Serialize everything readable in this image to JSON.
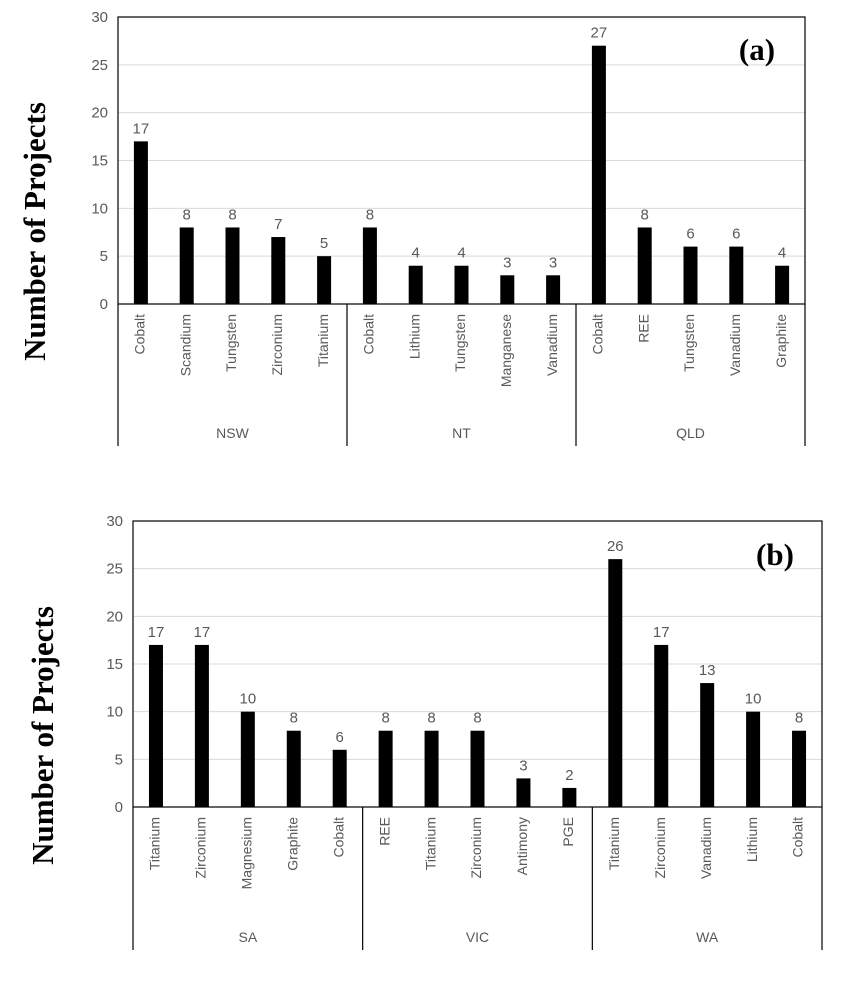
{
  "chart_data": [
    {
      "type": "bar",
      "panel_label": "(a)",
      "ylabel": "Number of Projects",
      "ylim": [
        0,
        30
      ],
      "yticks": [
        "0",
        "5",
        "10",
        "15",
        "20",
        "25",
        "30"
      ],
      "grid": true,
      "groups": [
        {
          "name": "NSW",
          "categories": [
            "Cobalt",
            "Scandium",
            "Tungsten",
            "Zirconium",
            "Titanium"
          ],
          "values": [
            17,
            8,
            8,
            7,
            5
          ]
        },
        {
          "name": "NT",
          "categories": [
            "Cobalt",
            "Lithium",
            "Tungsten",
            "Manganese",
            "Vanadium"
          ],
          "values": [
            8,
            4,
            4,
            3,
            3
          ]
        },
        {
          "name": "QLD",
          "categories": [
            "Cobalt",
            "REE",
            "Tungsten",
            "Vanadium",
            "Graphite"
          ],
          "values": [
            27,
            8,
            6,
            6,
            4
          ]
        }
      ]
    },
    {
      "type": "bar",
      "panel_label": "(b)",
      "ylabel": "Number of Projects",
      "ylim": [
        0,
        30
      ],
      "yticks": [
        "0",
        "5",
        "10",
        "15",
        "20",
        "25",
        "30"
      ],
      "grid": true,
      "groups": [
        {
          "name": "SA",
          "categories": [
            "Titanium",
            "Zirconium",
            "Magnesium",
            "Graphite",
            "Cobalt"
          ],
          "values": [
            17,
            17,
            10,
            8,
            6
          ]
        },
        {
          "name": "VIC",
          "categories": [
            "REE",
            "Titanium",
            "Zirconium",
            "Antimony",
            "PGE"
          ],
          "values": [
            8,
            8,
            8,
            3,
            2
          ]
        },
        {
          "name": "WA",
          "categories": [
            "Titanium",
            "Zirconium",
            "Vanadium",
            "Lithium",
            "Cobalt"
          ],
          "values": [
            26,
            17,
            13,
            10,
            8
          ]
        }
      ]
    }
  ]
}
